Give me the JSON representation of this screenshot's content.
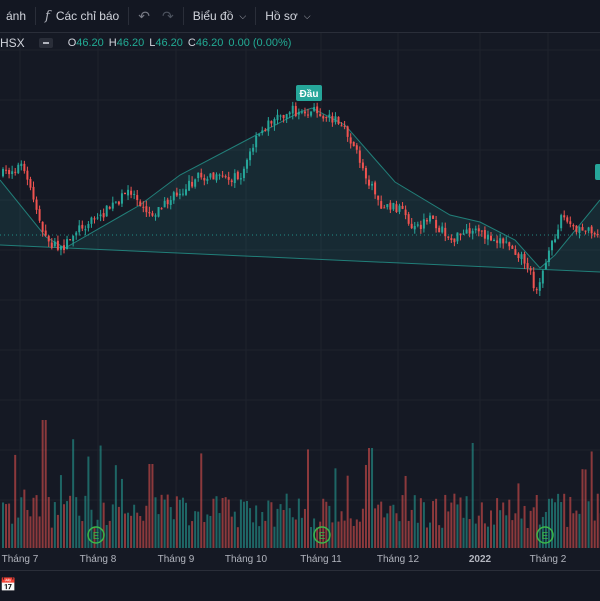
{
  "toolbar": {
    "frame_label": "ánh",
    "indicators_label": "Các chỉ báo",
    "chart_type_label": "Biểu đồ",
    "profile_label": "Hồ sơ"
  },
  "legend": {
    "symbol": "HSX",
    "open_label": "O",
    "open": "46.20",
    "high_label": "H",
    "high": "46.20",
    "low_label": "L",
    "low": "46.20",
    "close_label": "C",
    "close": "46.20",
    "change": "0.00 (0.00%)"
  },
  "colors": {
    "background": "#151924",
    "up": "#26a69a",
    "down": "#ef5350",
    "pattern_line": "#26a69a",
    "pattern_fill": "#26a69a",
    "grid": "#1e222d",
    "axis_text": "#b2b5be"
  },
  "icons": [
    "indicators-icon",
    "undo-icon",
    "redo-icon",
    "chevron-down-icon",
    "calendar-icon",
    "earnings-icon"
  ],
  "chart_data": {
    "type": "candlestick",
    "title": "",
    "pattern_label": "Đầu",
    "x_ticks": [
      "Tháng 7",
      "Tháng 8",
      "Tháng 9",
      "Tháng 10",
      "Tháng 11",
      "Tháng 12",
      "2022",
      "Tháng 2"
    ],
    "earnings_marker_text": "E",
    "earnings_marker_count": 3,
    "grid": true
  }
}
